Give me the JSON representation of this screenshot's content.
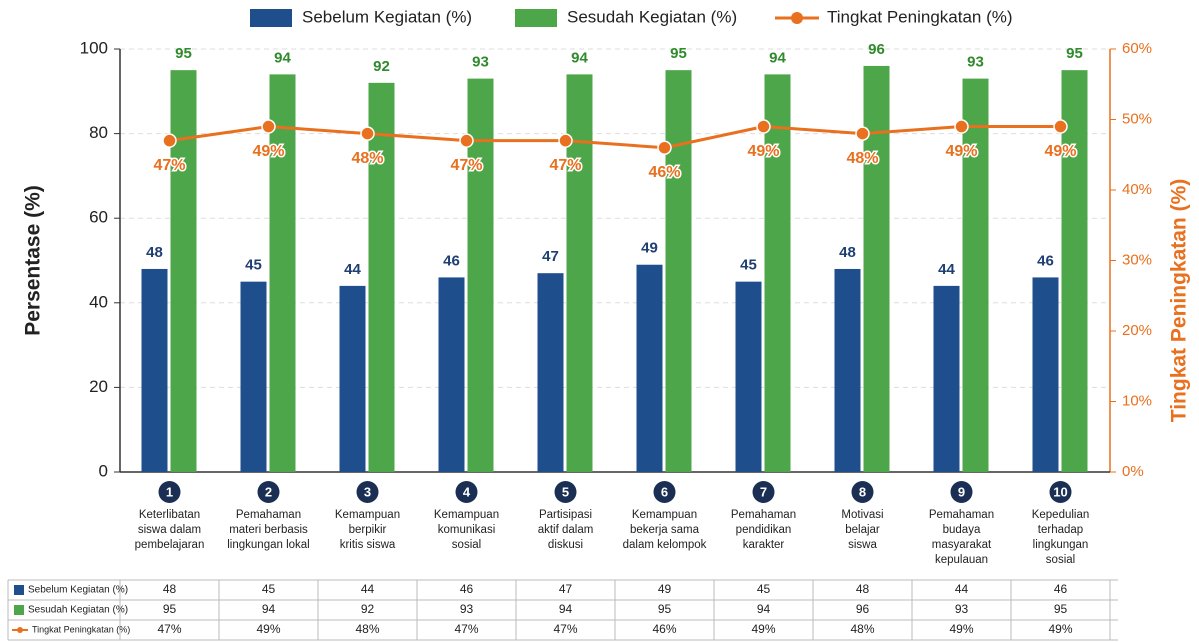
{
  "chart_data": {
    "type": "bar_line",
    "categories": [
      "Keterlibatan\nsiswa dalam\npembelajaran",
      "Pemahaman\nmateri berbasis\nlingkungan lokal",
      "Kemampuan\nberpikir\nkritis siswa",
      "Kemampuan\nkomunikasi\nsosial",
      "Partisipasi\naktif dalam\ndiskusi",
      "Kemampuan\nbekerja sama\ndalam kelompok",
      "Pemahaman\npendidikan\nkarakter",
      "Motivasi\nbelajar\nsiswa",
      "Pemahaman\nbudaya\nmasyarakat\nkepulauan",
      "Kepedulian\nterhadap\nlingkungan\nsosial"
    ],
    "category_numbers": [
      "1",
      "2",
      "3",
      "4",
      "5",
      "6",
      "7",
      "8",
      "9",
      "10"
    ],
    "series": [
      {
        "name": "Sebelum Kegiatan (%)",
        "color": "#1f4e8c",
        "type": "bar",
        "values": [
          48,
          45,
          44,
          46,
          47,
          49,
          45,
          48,
          44,
          46
        ]
      },
      {
        "name": "Sesudah Kegiatan (%)",
        "color": "#4ea64a",
        "type": "bar",
        "values": [
          95,
          94,
          92,
          93,
          94,
          95,
          94,
          96,
          93,
          95
        ]
      },
      {
        "name": "Tingkat Peningkatan (%)",
        "color": "#e8701e",
        "type": "line",
        "axis": "y2",
        "values": [
          47,
          49,
          48,
          47,
          47,
          46,
          49,
          48,
          49,
          49
        ],
        "value_labels": [
          "47%",
          "49%",
          "48%",
          "47%",
          "47%",
          "46%",
          "49%",
          "48%",
          "49%",
          "49%"
        ]
      }
    ],
    "ylabel": "Persentase (%)",
    "y2label": "Tingkat Peningkatan (%)",
    "ylim": [
      0,
      100
    ],
    "yticks": [
      0,
      20,
      40,
      60,
      80,
      100
    ],
    "y2lim": [
      0,
      60
    ],
    "y2ticks": [
      {
        "value": 0,
        "label": "0%"
      },
      {
        "value": 10,
        "label": "10%"
      },
      {
        "value": 20,
        "label": "20%"
      },
      {
        "value": 30,
        "label": "30%"
      },
      {
        "value": 40,
        "label": "40%"
      },
      {
        "value": 50,
        "label": "50%"
      },
      {
        "value": 60,
        "label": "60%"
      }
    ],
    "grid": true,
    "legend": "top"
  }
}
